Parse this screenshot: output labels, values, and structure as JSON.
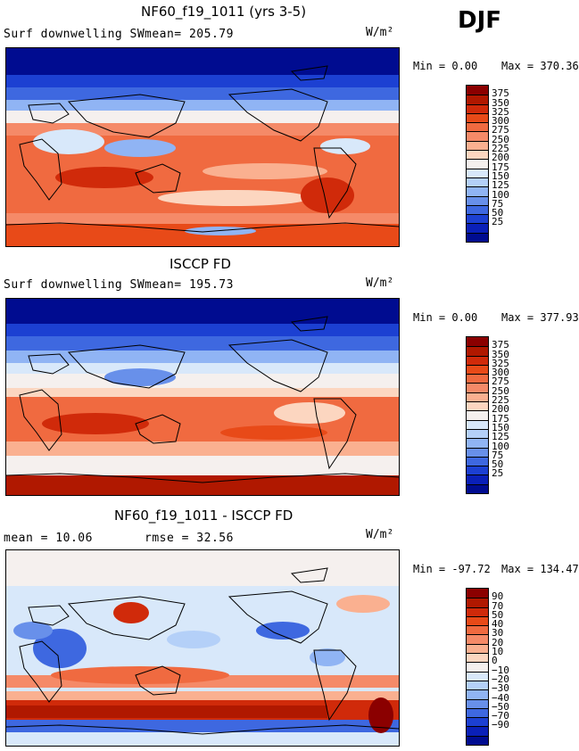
{
  "season": "DJF",
  "panels": [
    {
      "title": "NF60_f19_1011 (yrs 3-5)",
      "left_label": "Surf downwelling SW",
      "stat1": "mean= 205.79",
      "stat2": "",
      "units": "W/m²",
      "min_text": "Min =   0.00",
      "max_text": "Max = 370.36",
      "colorbar": {
        "colors": [
          "#8b0000",
          "#b01800",
          "#d02a0a",
          "#e84a18",
          "#f06a40",
          "#f58a68",
          "#fab090",
          "#fcd6c0",
          "#f5f0ee",
          "#d8e8fa",
          "#b4d0f8",
          "#90b4f4",
          "#6890ea",
          "#3e68e0",
          "#1c40d2",
          "#0a20b8",
          "#000c90"
        ],
        "labels": [
          "375",
          "350",
          "325",
          "300",
          "275",
          "250",
          "225",
          "200",
          "175",
          "150",
          "125",
          "100",
          "75",
          "50",
          "25"
        ]
      }
    },
    {
      "title": "ISCCP FD",
      "left_label": "Surf downwelling SW",
      "stat1": "mean= 195.73",
      "stat2": "",
      "units": "W/m²",
      "min_text": "Min =   0.00",
      "max_text": "Max = 377.93",
      "colorbar": {
        "colors": [
          "#8b0000",
          "#b01800",
          "#d02a0a",
          "#e84a18",
          "#f06a40",
          "#f58a68",
          "#fab090",
          "#fcd6c0",
          "#f5f0ee",
          "#d8e8fa",
          "#b4d0f8",
          "#90b4f4",
          "#6890ea",
          "#3e68e0",
          "#1c40d2",
          "#0a20b8",
          "#000c90"
        ],
        "labels": [
          "375",
          "350",
          "325",
          "300",
          "275",
          "250",
          "225",
          "200",
          "175",
          "150",
          "125",
          "100",
          "75",
          "50",
          "25"
        ]
      }
    },
    {
      "title": "NF60_f19_1011 - ISCCP FD",
      "left_label": "mean =  10.06",
      "stat1": "",
      "stat2": "rmse =  32.56",
      "units": "W/m²",
      "min_text": "Min = -97.72",
      "max_text": "Max = 134.47",
      "colorbar": {
        "colors": [
          "#8b0000",
          "#b01800",
          "#d02a0a",
          "#e84a18",
          "#f06a40",
          "#f58a68",
          "#fab090",
          "#fcd6c0",
          "#f5f0ee",
          "#d8e8fa",
          "#b4d0f8",
          "#90b4f4",
          "#6890ea",
          "#3e68e0",
          "#1c40d2",
          "#0a20b8",
          "#000c90"
        ],
        "labels": [
          "90",
          "70",
          "50",
          "40",
          "30",
          "20",
          "10",
          "0",
          "−10",
          "−20",
          "−30",
          "−40",
          "−50",
          "−70",
          "−90"
        ]
      }
    }
  ]
}
